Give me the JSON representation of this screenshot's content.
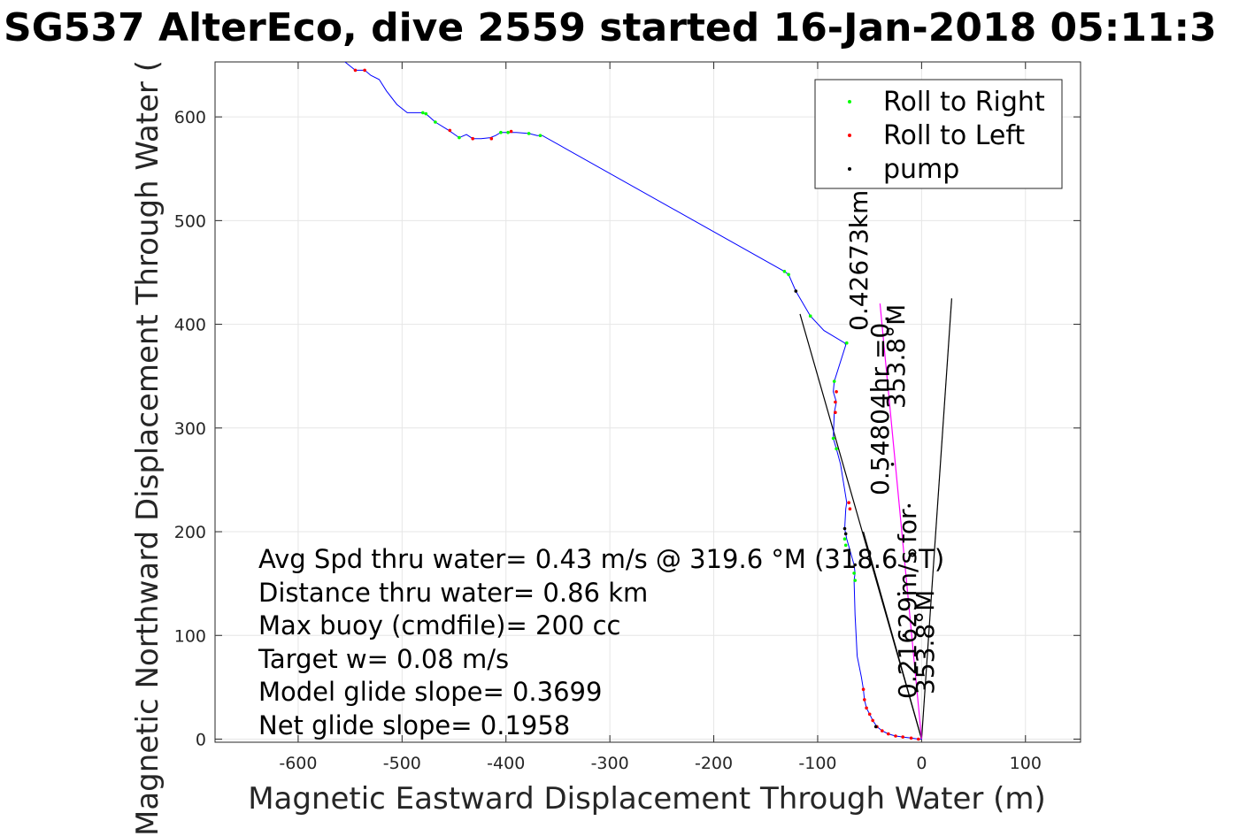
{
  "chart_data": {
    "type": "line",
    "title": "SG537 AlterEco, dive 2559 started 16-Jan-2018 05:11:3",
    "xlabel": "Magnetic Eastward Displacement Through Water (m)",
    "ylabel": "Magnetic Northward Displacement Through Water (",
    "xlim": [
      -680,
      153
    ],
    "ylim": [
      -3,
      653
    ],
    "xticks": [
      -600,
      -500,
      -400,
      -300,
      -200,
      -100,
      0,
      100
    ],
    "yticks": [
      0,
      100,
      200,
      300,
      400,
      500,
      600
    ],
    "xtick_labels": [
      "-600",
      "-500",
      "-400",
      "-300",
      "-200",
      "-100",
      "0",
      "100"
    ],
    "ytick_labels": [
      "0",
      "100",
      "200",
      "300",
      "400",
      "500",
      "600"
    ],
    "grid": true,
    "legend_position": "top-right",
    "series": [
      {
        "name": "Roll to Right",
        "color": "#00ff00",
        "marker": "dot",
        "x": [
          -480,
          -477,
          -468,
          -445,
          -405,
          -398,
          -378,
          -367,
          -132,
          -128,
          -107,
          -72,
          -84,
          -85,
          -82,
          -74,
          -73,
          -65,
          -64
        ],
        "y": [
          604,
          603,
          595,
          580,
          585,
          585,
          584,
          582,
          451,
          448,
          408,
          382,
          345,
          290,
          280,
          193,
          187,
          160,
          153
        ]
      },
      {
        "name": "Roll to Left",
        "color": "#ff0000",
        "marker": "dot",
        "x": [
          -545,
          -536,
          -454,
          -432,
          -414,
          -395,
          -82,
          -83,
          -83,
          -70,
          -69,
          -56,
          -55,
          -53,
          -50,
          -47,
          -43,
          -38,
          -32,
          -25,
          -18,
          -10,
          -3
        ],
        "y": [
          645,
          645,
          587,
          579,
          579,
          586,
          335,
          325,
          315,
          228,
          222,
          48,
          38,
          30,
          24,
          18,
          12,
          8,
          5,
          3,
          2,
          1,
          0
        ]
      },
      {
        "name": "pump",
        "color": "#000000",
        "marker": "dot",
        "x": [
          -121,
          -74,
          -73,
          -64,
          -28,
          -44,
          -12,
          -17,
          -22
        ],
        "y": [
          432,
          203,
          198,
          168,
          265,
          12,
          225,
          100,
          140
        ]
      }
    ],
    "track": {
      "name": "",
      "color": "#0000ff",
      "x": [
        -555,
        -545,
        -536,
        -530,
        -522,
        -515,
        -505,
        -495,
        -482,
        -477,
        -468,
        -455,
        -445,
        -438,
        -432,
        -424,
        -415,
        -410,
        -405,
        -400,
        -390,
        -378,
        -370,
        -365,
        -132,
        -128,
        -121,
        -107,
        -94,
        -74,
        -73,
        -84,
        -85,
        -82,
        -84,
        -85,
        -82,
        -78,
        -72,
        -73,
        -74,
        -72,
        -65,
        -64,
        -65,
        -64,
        -62,
        -58,
        -56,
        -55,
        -53,
        -50,
        -47,
        -43,
        -38,
        -32,
        -25,
        -18,
        -10,
        -3,
        0
      ],
      "y": [
        653,
        645,
        645,
        640,
        636,
        625,
        612,
        604,
        604,
        603,
        595,
        587,
        580,
        583,
        579,
        579,
        580,
        582,
        585,
        585,
        585,
        584,
        582,
        582,
        451,
        448,
        432,
        408,
        394,
        382,
        380,
        345,
        335,
        325,
        315,
        290,
        280,
        265,
        228,
        222,
        203,
        193,
        168,
        160,
        153,
        120,
        80,
        60,
        48,
        38,
        30,
        24,
        18,
        12,
        8,
        5,
        3,
        2,
        1,
        0,
        0
      ]
    },
    "magenta_line": {
      "name": "",
      "color": "#ff00ff",
      "x": [
        0,
        -40
      ],
      "y": [
        0,
        420
      ]
    },
    "wedge_lines": [
      {
        "name": "",
        "color": "#000000",
        "x": [
          0,
          -117
        ],
        "y": [
          0,
          410
        ]
      },
      {
        "name": "",
        "color": "#000000",
        "x": [
          0,
          29
        ],
        "y": [
          0,
          425
        ]
      },
      {
        "name": "",
        "color": "#000000",
        "x": [
          0,
          -56
        ],
        "y": [
          0,
          200
        ]
      }
    ],
    "annotations": {
      "lines": [
        "Avg Spd thru water=  0.43 m/s @ 319.6 °M (318.6 °T)",
        "Distance thru water=  0.86 km",
        "Max buoy (cmdfile)= 200 cc",
        "Target w= 0.08 m/s",
        "Model glide slope= 0.3699",
        "Net glide slope= 0.1958"
      ],
      "rotated": [
        "0.42673km",
        "0.54804hr =0.",
        "353.8°M",
        "0.21629m/s for",
        "353.8°M"
      ]
    }
  }
}
